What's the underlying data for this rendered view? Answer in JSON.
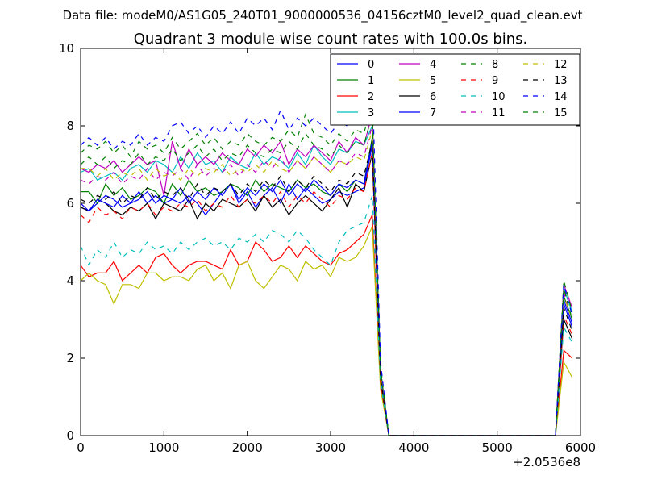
{
  "chart_data": {
    "type": "line",
    "suptitle": "Data file: modeM0/AS1G05_240T01_9000000536_04156cztM0_level2_quad_clean.evt",
    "title": "Quadrant 3 module wise count rates with 100.0s bins.",
    "xlabel": "",
    "ylabel": "",
    "x_offset_label": "+2.0536e8",
    "xlim": [
      0,
      6000
    ],
    "ylim": [
      0,
      10
    ],
    "xticks": [
      0,
      1000,
      2000,
      3000,
      4000,
      5000,
      6000
    ],
    "yticks": [
      0,
      2,
      4,
      6,
      8,
      10
    ],
    "grid": false,
    "legend_position": "top-right",
    "legend_columns": 4,
    "x": [
      0,
      100,
      200,
      300,
      400,
      500,
      600,
      700,
      800,
      900,
      1000,
      1100,
      1200,
      1300,
      1400,
      1500,
      1600,
      1700,
      1800,
      1900,
      2000,
      2100,
      2200,
      2300,
      2400,
      2500,
      2600,
      2700,
      2800,
      2900,
      3000,
      3100,
      3200,
      3300,
      3400,
      3500,
      3600,
      3700,
      3800,
      3900,
      4000,
      4100,
      4200,
      4300,
      4400,
      4500,
      4600,
      4700,
      4800,
      4900,
      5000,
      5100,
      5200,
      5300,
      5400,
      5500,
      5600,
      5700,
      5800,
      5900
    ],
    "series": [
      {
        "name": "0",
        "color": "#0000ff",
        "dash": "solid",
        "values": [
          5.9,
          5.8,
          6.0,
          6.2,
          6.1,
          5.9,
          6.0,
          6.3,
          6.0,
          6.2,
          6.0,
          6.1,
          6.0,
          6.2,
          6.0,
          5.7,
          6.0,
          6.3,
          6.5,
          6.0,
          6.3,
          5.9,
          6.2,
          6.4,
          6.0,
          6.5,
          6.1,
          6.4,
          6.2,
          6.0,
          6.1,
          6.3,
          6.2,
          6.3,
          6.4,
          7.5,
          1.5,
          0,
          0,
          0,
          0,
          0,
          0,
          0,
          0,
          0,
          0,
          0,
          0,
          0,
          0,
          0,
          0,
          0,
          0,
          0,
          0,
          0,
          3.4,
          2.8
        ]
      },
      {
        "name": "1",
        "color": "#008000",
        "dash": "solid",
        "values": [
          6.3,
          6.3,
          6.0,
          6.5,
          6.2,
          6.4,
          6.1,
          6.2,
          6.4,
          6.3,
          6.0,
          6.5,
          6.2,
          6.6,
          6.3,
          6.4,
          6.2,
          6.3,
          6.5,
          6.4,
          6.2,
          6.6,
          6.3,
          6.5,
          6.4,
          6.3,
          6.6,
          6.4,
          6.5,
          6.3,
          6.2,
          6.5,
          6.3,
          6.6,
          6.5,
          7.7,
          1.6,
          0,
          0,
          0,
          0,
          0,
          0,
          0,
          0,
          0,
          0,
          0,
          0,
          0,
          0,
          0,
          0,
          0,
          0,
          0,
          0,
          0,
          3.6,
          3.0
        ]
      },
      {
        "name": "2",
        "color": "#ff0000",
        "dash": "solid",
        "values": [
          4.4,
          4.1,
          4.2,
          4.2,
          4.5,
          4.0,
          4.2,
          4.4,
          4.2,
          4.6,
          4.7,
          4.4,
          4.2,
          4.4,
          4.5,
          4.5,
          4.4,
          4.3,
          4.8,
          4.4,
          4.5,
          5.0,
          4.8,
          4.5,
          4.6,
          4.9,
          4.6,
          4.9,
          4.7,
          4.5,
          4.4,
          4.7,
          4.8,
          5.0,
          5.2,
          5.7,
          1.3,
          0,
          0,
          0,
          0,
          0,
          0,
          0,
          0,
          0,
          0,
          0,
          0,
          0,
          0,
          0,
          0,
          0,
          0,
          0,
          0,
          0,
          2.2,
          2.0
        ]
      },
      {
        "name": "3",
        "color": "#00bfbf",
        "dash": "solid",
        "values": [
          6.8,
          6.9,
          6.6,
          6.7,
          6.8,
          6.6,
          6.9,
          7.0,
          6.8,
          7.1,
          7.0,
          6.8,
          7.2,
          6.9,
          7.3,
          7.0,
          7.1,
          6.8,
          7.2,
          7.0,
          6.9,
          7.3,
          7.0,
          7.2,
          7.1,
          6.9,
          7.3,
          7.0,
          7.5,
          7.2,
          7.0,
          7.4,
          7.3,
          7.6,
          7.5,
          8.0,
          1.7,
          0,
          0,
          0,
          0,
          0,
          0,
          0,
          0,
          0,
          0,
          0,
          0,
          0,
          0,
          0,
          0,
          0,
          0,
          0,
          0,
          0,
          3.8,
          3.2
        ]
      },
      {
        "name": "4",
        "color": "#bf00bf",
        "dash": "solid",
        "values": [
          6.9,
          6.8,
          7.0,
          6.9,
          7.1,
          6.8,
          7.0,
          7.2,
          7.0,
          7.1,
          6.2,
          7.6,
          6.9,
          7.4,
          7.0,
          7.2,
          7.0,
          7.3,
          7.1,
          7.0,
          7.4,
          7.2,
          7.5,
          7.3,
          7.6,
          7.0,
          7.4,
          7.2,
          7.5,
          7.3,
          7.1,
          7.6,
          7.3,
          7.7,
          7.5,
          8.3,
          1.7,
          0,
          0,
          0,
          0,
          0,
          0,
          0,
          0,
          0,
          0,
          0,
          0,
          0,
          0,
          0,
          0,
          0,
          0,
          0,
          0,
          0,
          3.9,
          3.3
        ]
      },
      {
        "name": "5",
        "color": "#bfbf00",
        "dash": "solid",
        "values": [
          4.0,
          4.2,
          4.0,
          3.9,
          3.4,
          3.9,
          3.9,
          3.8,
          4.2,
          4.2,
          4.0,
          4.1,
          4.1,
          4.0,
          4.3,
          4.4,
          4.0,
          4.2,
          3.8,
          4.4,
          4.5,
          4.0,
          3.8,
          4.1,
          4.4,
          4.3,
          4.0,
          4.5,
          4.3,
          4.4,
          4.1,
          4.6,
          4.5,
          4.6,
          4.9,
          5.4,
          1.2,
          0,
          0,
          0,
          0,
          0,
          0,
          0,
          0,
          0,
          0,
          0,
          0,
          0,
          0,
          0,
          0,
          0,
          0,
          0,
          0,
          0,
          1.9,
          1.5
        ]
      },
      {
        "name": "6",
        "color": "#000000",
        "dash": "solid",
        "values": [
          5.9,
          5.8,
          6.1,
          6.0,
          5.8,
          5.7,
          5.9,
          5.8,
          6.0,
          5.6,
          6.0,
          5.9,
          5.8,
          6.1,
          5.6,
          6.0,
          5.8,
          6.1,
          6.0,
          5.9,
          6.1,
          5.8,
          6.2,
          5.9,
          6.1,
          5.7,
          6.0,
          6.2,
          6.0,
          5.8,
          6.1,
          6.4,
          5.9,
          6.5,
          6.3,
          7.3,
          1.4,
          0,
          0,
          0,
          0,
          0,
          0,
          0,
          0,
          0,
          0,
          0,
          0,
          0,
          0,
          0,
          0,
          0,
          0,
          0,
          0,
          0,
          3.0,
          2.5
        ]
      },
      {
        "name": "7",
        "color": "#0000ff",
        "dash": "solid",
        "values": [
          6.0,
          5.8,
          6.1,
          6.0,
          5.9,
          6.2,
          6.0,
          6.1,
          6.3,
          6.0,
          6.2,
          6.1,
          6.4,
          6.0,
          6.3,
          6.1,
          6.4,
          6.2,
          6.5,
          6.1,
          6.4,
          6.2,
          6.5,
          6.3,
          6.6,
          6.2,
          6.5,
          6.3,
          6.6,
          6.4,
          6.2,
          6.5,
          6.4,
          6.6,
          6.5,
          7.6,
          1.5,
          0,
          0,
          0,
          0,
          0,
          0,
          0,
          0,
          0,
          0,
          0,
          0,
          0,
          0,
          0,
          0,
          0,
          0,
          0,
          0,
          0,
          3.5,
          2.9
        ]
      },
      {
        "name": "8",
        "color": "#008000",
        "dash": "dashed",
        "values": [
          7.3,
          7.5,
          7.4,
          7.6,
          7.3,
          7.5,
          7.2,
          7.6,
          7.4,
          7.5,
          7.3,
          7.7,
          7.4,
          7.6,
          7.8,
          7.5,
          7.7,
          7.4,
          7.6,
          7.5,
          7.8,
          7.6,
          7.5,
          7.7,
          7.6,
          7.9,
          7.7,
          8.3,
          7.8,
          7.7,
          7.5,
          7.8,
          7.6,
          7.9,
          7.8,
          8.6,
          1.8,
          0,
          0,
          0,
          0,
          0,
          0,
          0,
          0,
          0,
          0,
          0,
          0,
          0,
          0,
          0,
          0,
          0,
          0,
          0,
          0,
          0,
          4.0,
          3.2
        ]
      },
      {
        "name": "9",
        "color": "#ff0000",
        "dash": "dashed",
        "values": [
          5.7,
          5.5,
          5.9,
          5.7,
          5.8,
          5.6,
          5.9,
          5.8,
          6.0,
          5.7,
          5.9,
          5.8,
          6.0,
          5.9,
          6.1,
          5.8,
          6.0,
          5.9,
          6.2,
          5.9,
          6.1,
          6.0,
          6.2,
          6.0,
          6.3,
          5.9,
          6.2,
          6.0,
          6.3,
          6.1,
          5.9,
          6.2,
          6.1,
          6.4,
          6.3,
          7.3,
          1.4,
          0,
          0,
          0,
          0,
          0,
          0,
          0,
          0,
          0,
          0,
          0,
          0,
          0,
          0,
          0,
          0,
          0,
          0,
          0,
          0,
          0,
          3.1,
          2.6
        ]
      },
      {
        "name": "10",
        "color": "#00bfbf",
        "dash": "dashed",
        "values": [
          4.9,
          4.4,
          4.8,
          4.6,
          5.0,
          4.6,
          4.8,
          4.7,
          5.0,
          4.8,
          4.9,
          4.7,
          5.0,
          4.8,
          5.0,
          5.1,
          4.9,
          5.0,
          4.8,
          5.1,
          5.0,
          5.2,
          5.0,
          5.3,
          5.2,
          5.0,
          5.3,
          5.1,
          4.8,
          4.6,
          4.4,
          5.0,
          5.3,
          5.4,
          5.5,
          6.2,
          1.4,
          0,
          0,
          0,
          0,
          0,
          0,
          0,
          0,
          0,
          0,
          0,
          0,
          0,
          0,
          0,
          0,
          0,
          0,
          0,
          0,
          0,
          2.8,
          2.4
        ]
      },
      {
        "name": "11",
        "color": "#bf00bf",
        "dash": "dashed",
        "values": [
          6.6,
          6.5,
          6.7,
          6.6,
          6.8,
          6.5,
          6.7,
          6.6,
          6.9,
          6.6,
          6.8,
          6.7,
          6.9,
          6.6,
          7.0,
          6.7,
          6.9,
          6.8,
          7.0,
          6.7,
          7.0,
          6.8,
          7.1,
          6.9,
          7.2,
          6.8,
          7.1,
          6.9,
          7.2,
          7.0,
          6.8,
          7.1,
          7.0,
          7.3,
          7.2,
          8.0,
          1.6,
          0,
          0,
          0,
          0,
          0,
          0,
          0,
          0,
          0,
          0,
          0,
          0,
          0,
          0,
          0,
          0,
          0,
          0,
          0,
          0,
          0,
          3.7,
          3.0
        ]
      },
      {
        "name": "12",
        "color": "#bfbf00",
        "dash": "dashed",
        "values": [
          6.9,
          6.9,
          6.7,
          6.9,
          6.6,
          6.8,
          6.7,
          6.9,
          6.6,
          6.9,
          6.7,
          6.8,
          6.6,
          6.9,
          6.7,
          6.9,
          6.8,
          7.0,
          6.7,
          6.9,
          6.8,
          7.0,
          6.8,
          7.1,
          6.9,
          6.8,
          7.1,
          6.9,
          7.2,
          7.0,
          6.8,
          7.1,
          7.0,
          7.2,
          7.1,
          7.9,
          1.6,
          0,
          0,
          0,
          0,
          0,
          0,
          0,
          0,
          0,
          0,
          0,
          0,
          0,
          0,
          0,
          0,
          0,
          0,
          0,
          0,
          0,
          3.6,
          3.0
        ]
      },
      {
        "name": "13",
        "color": "#000000",
        "dash": "dashed",
        "values": [
          6.1,
          6.0,
          6.2,
          6.1,
          6.3,
          6.0,
          6.2,
          6.1,
          6.4,
          6.1,
          6.3,
          6.2,
          6.4,
          6.1,
          6.5,
          6.2,
          6.4,
          6.3,
          6.5,
          6.2,
          6.5,
          6.3,
          6.6,
          6.4,
          6.7,
          6.3,
          6.6,
          6.4,
          6.7,
          6.5,
          6.3,
          6.6,
          6.5,
          6.8,
          6.7,
          7.6,
          1.5,
          0,
          0,
          0,
          0,
          0,
          0,
          0,
          0,
          0,
          0,
          0,
          0,
          0,
          0,
          0,
          0,
          0,
          0,
          0,
          0,
          0,
          3.3,
          2.7
        ]
      },
      {
        "name": "14",
        "color": "#0000ff",
        "dash": "dashed",
        "values": [
          7.5,
          7.7,
          7.5,
          7.7,
          7.4,
          7.6,
          7.5,
          7.8,
          7.5,
          7.7,
          7.6,
          8.0,
          8.1,
          7.8,
          8.0,
          7.7,
          8.0,
          7.8,
          8.1,
          7.8,
          8.2,
          8.0,
          8.2,
          7.9,
          8.4,
          7.9,
          8.2,
          8.0,
          8.2,
          8.0,
          7.8,
          8.1,
          8.0,
          8.3,
          8.2,
          9.2,
          1.9,
          0,
          0,
          0,
          0,
          0,
          0,
          0,
          0,
          0,
          0,
          0,
          0,
          0,
          0,
          0,
          0,
          0,
          0,
          0,
          0,
          0,
          3.9,
          3.1
        ]
      },
      {
        "name": "15",
        "color": "#008000",
        "dash": "dashed",
        "values": [
          7.0,
          7.2,
          7.0,
          7.2,
          6.9,
          7.1,
          7.0,
          7.3,
          7.0,
          7.2,
          7.1,
          7.4,
          7.1,
          7.3,
          7.5,
          7.2,
          7.4,
          7.1,
          7.3,
          7.2,
          7.5,
          7.3,
          7.2,
          7.4,
          7.3,
          7.6,
          7.4,
          7.8,
          7.5,
          7.4,
          7.2,
          7.5,
          7.3,
          7.6,
          7.5,
          8.3,
          1.7,
          0,
          0,
          0,
          0,
          0,
          0,
          0,
          0,
          0,
          0,
          0,
          0,
          0,
          0,
          0,
          0,
          0,
          0,
          0,
          0,
          0,
          3.8,
          3.0
        ]
      }
    ]
  }
}
